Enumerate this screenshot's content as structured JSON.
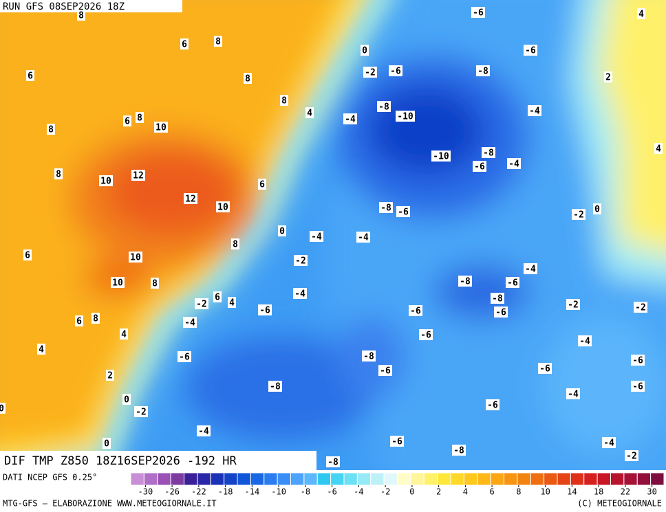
{
  "header": {
    "run": "RUN GFS 08SEP2026 18Z"
  },
  "map": {
    "title": "DIF TMP Z850 18Z16SEP2026 -192 HR",
    "contour_labels": [
      8,
      -6,
      4,
      6,
      8,
      0,
      -6,
      6,
      8,
      -2,
      -6,
      -8,
      2,
      8,
      4,
      -8,
      -10,
      -4,
      6,
      8,
      10,
      -4,
      8,
      4,
      -8,
      -10,
      -6,
      -4,
      12,
      8,
      10,
      6,
      12,
      10,
      -8,
      -6,
      0,
      -2,
      0,
      -4,
      -4,
      8,
      6,
      10,
      -2,
      -4,
      10,
      8,
      -8,
      -6,
      -4,
      -8,
      -2,
      6,
      4,
      -2,
      -2,
      -6,
      -6,
      -6,
      -4,
      6,
      8,
      4,
      -6,
      -4,
      4,
      -6,
      -8,
      -6,
      -6,
      -6,
      2,
      -8,
      -6,
      -4,
      0,
      -6,
      -2,
      0,
      -4,
      0,
      -6,
      -4,
      -8,
      -2,
      -8
    ]
  },
  "legend": {
    "source": "DATI NCEP GFS 0.25°",
    "ticks": [
      -30,
      -26,
      -22,
      -18,
      -14,
      -10,
      -8,
      -6,
      -4,
      -2,
      0,
      2,
      4,
      6,
      8,
      10,
      14,
      18,
      22,
      30
    ]
  },
  "footer": {
    "left": "MTG-GFS — ELABORAZIONE WWW.METEOGIORNALE.IT",
    "right": "(C) METEOGIORNALE"
  }
}
